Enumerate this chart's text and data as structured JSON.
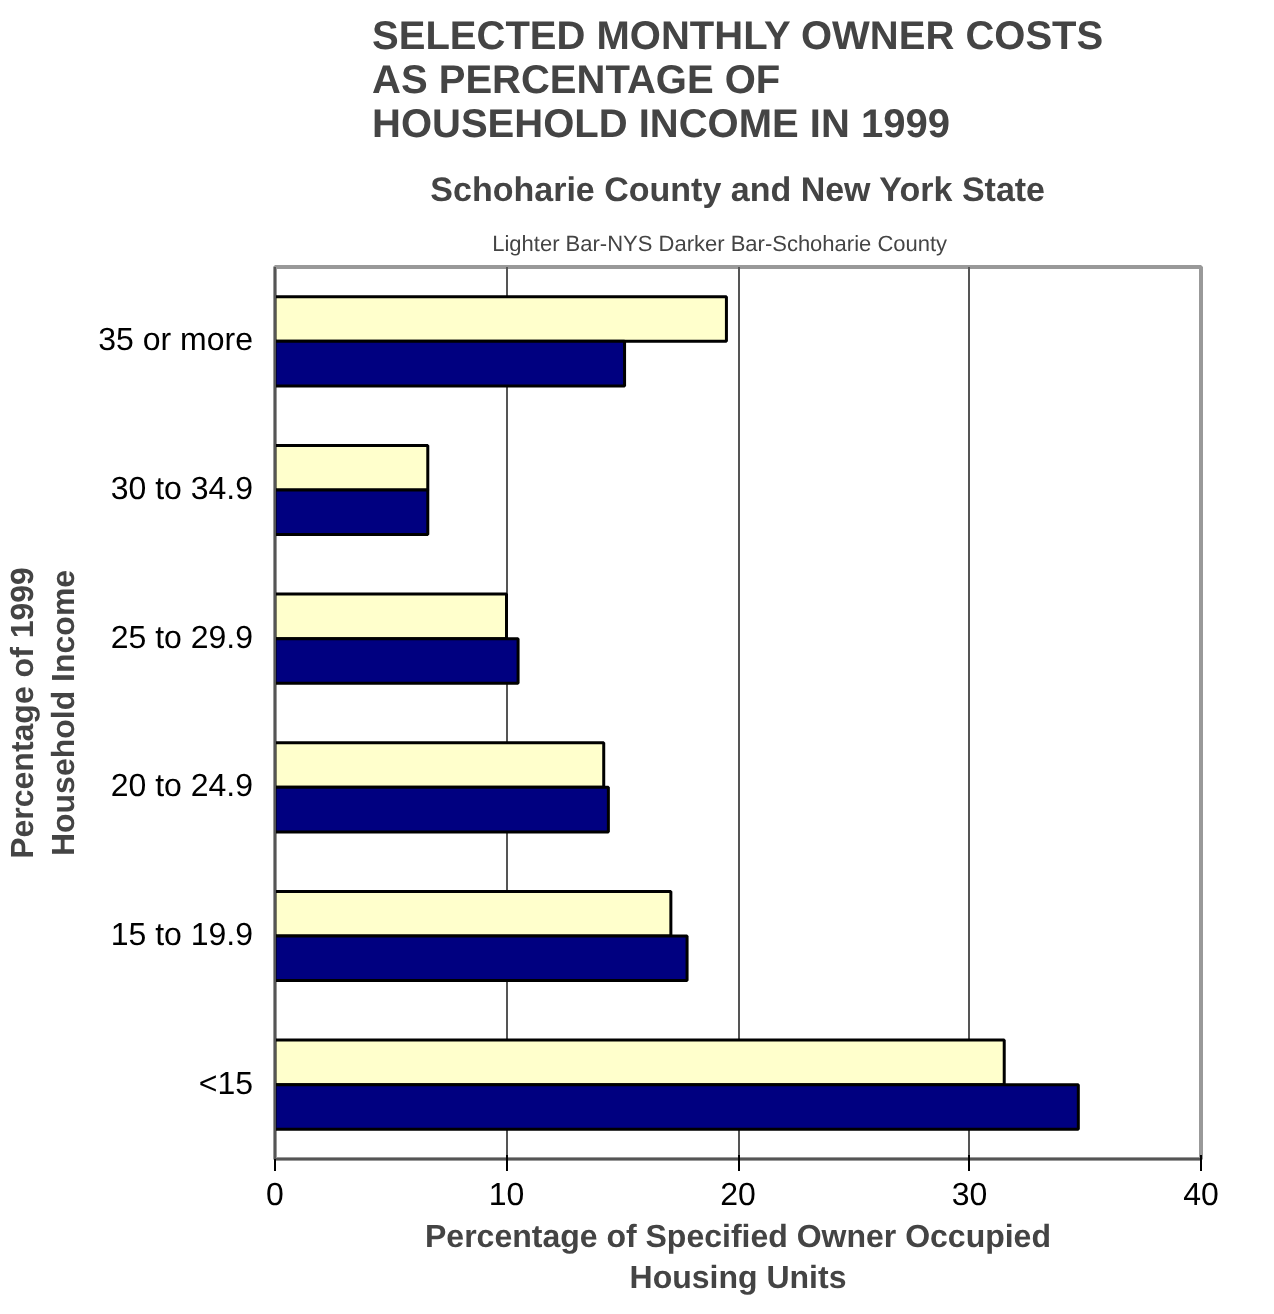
{
  "chart_data": {
    "type": "bar",
    "orientation": "horizontal",
    "title": "SELECTED MONTHLY OWNER COSTS\nAS PERCENTAGE OF\nHOUSEHOLD INCOME IN 1999",
    "subtitle": "Schoharie County and New York State",
    "annotations": [
      "Lighter Bar-NYS       Darker Bar-Schoharie County"
    ],
    "xlabel": "Percentage of Specified Owner Occupied\nHousing Units",
    "ylabel": "Percentage of 1999\nHousehold Income",
    "categories": [
      "35 or more",
      "30 to 34.9",
      "25 to 29.9",
      "20 to 24.9",
      "15 to 19.9",
      "<15"
    ],
    "series": [
      {
        "color": "#ffffcc",
        "values": [
          19.5,
          6.6,
          10.0,
          14.2,
          17.1,
          31.5
        ]
      },
      {
        "color": "#000080",
        "values": [
          15.1,
          6.6,
          10.5,
          14.4,
          17.8,
          34.7
        ]
      }
    ],
    "xlim": [
      0,
      40
    ],
    "xticks": [
      0,
      10,
      20,
      30,
      40
    ],
    "grid": "x"
  }
}
